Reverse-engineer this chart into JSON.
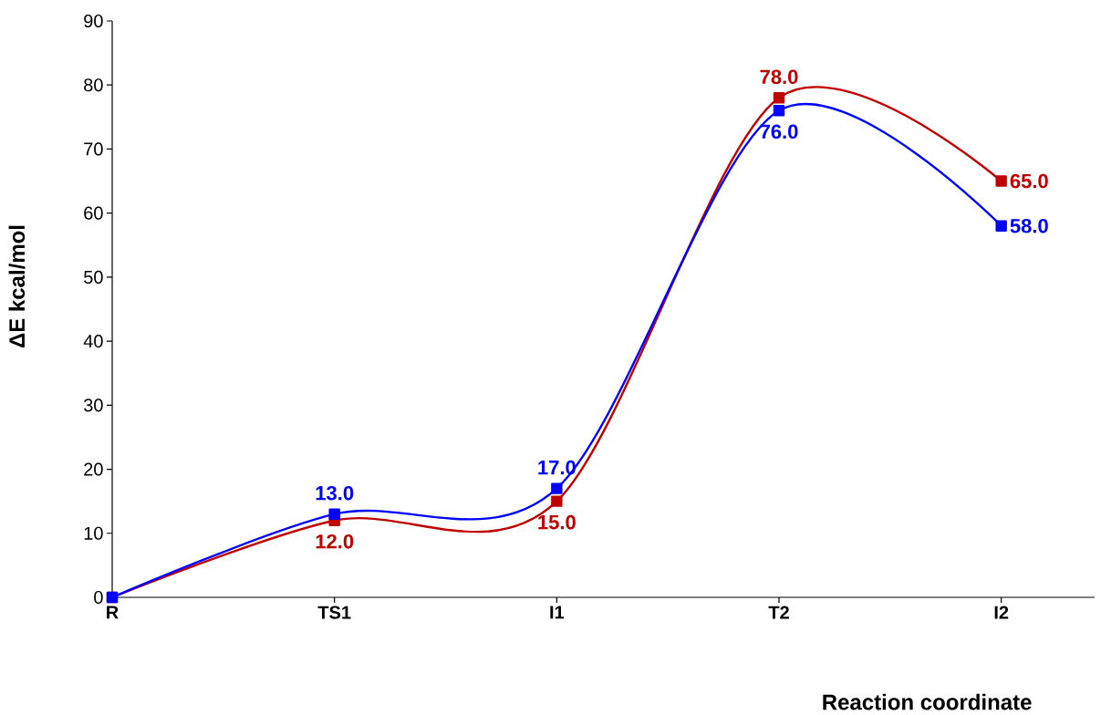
{
  "chart_data": {
    "type": "line",
    "xlabel": "Reaction coordinate",
    "ylabel": "ΔE kcal/mol",
    "categories": [
      "R",
      "TS1",
      "I1",
      "T2",
      "I2"
    ],
    "series": [
      {
        "color": "#c00000",
        "values": [
          0,
          12,
          15,
          78,
          65
        ],
        "value_labels": [
          null,
          "12.0",
          "15.0",
          "78.0",
          "65.0"
        ]
      },
      {
        "color": "#0000ff",
        "values": [
          0,
          13,
          17,
          76,
          58
        ],
        "value_labels": [
          null,
          "13.0",
          "17.0",
          "76.0",
          "58.0"
        ]
      }
    ],
    "ylim": [
      0,
      90
    ],
    "yticks": [
      0,
      10,
      20,
      30,
      40,
      50,
      60,
      70,
      80,
      90
    ],
    "marker": "square",
    "line_style": "solid",
    "grid": false,
    "legend": false
  }
}
